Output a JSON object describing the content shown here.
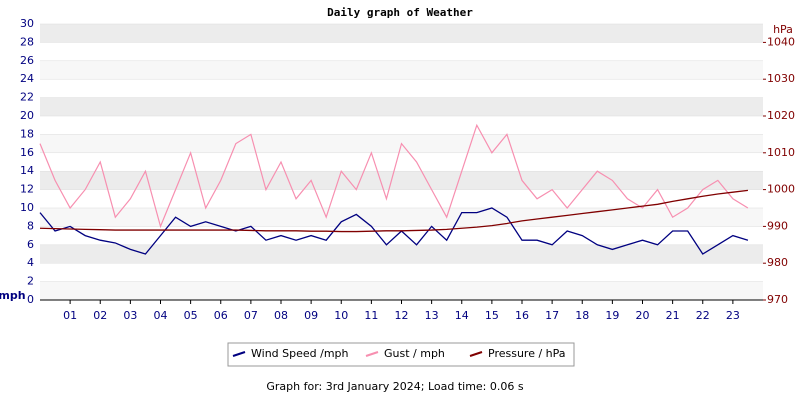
{
  "chart_data": {
    "type": "line",
    "title": "Daily graph of Weather",
    "y_label": "mph",
    "y2_label": "hPa",
    "footer": "Graph for: 3rd January 2024; Load time: 0.06 s",
    "x": [
      0,
      0.5,
      1,
      1.5,
      2,
      2.5,
      3,
      3.5,
      4,
      4.5,
      5,
      5.5,
      6,
      6.5,
      7,
      7.5,
      8,
      8.5,
      9,
      9.5,
      10,
      10.5,
      11,
      11.5,
      12,
      12.5,
      13,
      13.5,
      14,
      14.5,
      15,
      15.5,
      16,
      16.5,
      17,
      17.5,
      18,
      18.5,
      19,
      19.5,
      20,
      20.5,
      21,
      21.5,
      22,
      22.5,
      23,
      23.5
    ],
    "xlim": [
      0,
      24
    ],
    "xticks": [
      {
        "value": 1,
        "label": "01"
      },
      {
        "value": 2,
        "label": "02"
      },
      {
        "value": 3,
        "label": "03"
      },
      {
        "value": 4,
        "label": "04"
      },
      {
        "value": 5,
        "label": "05"
      },
      {
        "value": 6,
        "label": "06"
      },
      {
        "value": 7,
        "label": "07"
      },
      {
        "value": 8,
        "label": "08"
      },
      {
        "value": 9,
        "label": "09"
      },
      10,
      11,
      12,
      13,
      14,
      15,
      16,
      17,
      18,
      19,
      20,
      21,
      22,
      23
    ],
    "ylim": [
      0,
      30
    ],
    "yticks": [
      0,
      2,
      4,
      6,
      8,
      10,
      12,
      14,
      16,
      18,
      20,
      22,
      24,
      26,
      28,
      30
    ],
    "y2lim": [
      970,
      1045
    ],
    "y2ticks": [
      970,
      980,
      990,
      1000,
      1010,
      1020,
      1030,
      1040
    ],
    "series": [
      {
        "name": "Wind Speed /mph",
        "color": "#000080",
        "values": [
          9.5,
          7.5,
          8,
          7,
          6.5,
          6.2,
          5.5,
          5,
          7,
          9,
          8,
          8.5,
          8,
          7.5,
          8,
          6.5,
          7,
          6.5,
          7,
          6.5,
          8.5,
          9.3,
          8,
          6,
          7.5,
          6,
          8,
          6.5,
          9.5,
          9.5,
          10,
          9,
          6.5,
          6.5,
          6,
          7.5,
          7,
          6,
          5.5,
          6,
          6.5,
          6,
          7.5,
          7.5,
          5,
          6,
          7,
          6.5
        ]
      },
      {
        "name": "Gust / mph",
        "color": "#f78fb0",
        "values": [
          17,
          13,
          10,
          12,
          15,
          9,
          11,
          14,
          8,
          12,
          16,
          10,
          13,
          17,
          18,
          12,
          15,
          11,
          13,
          9,
          14,
          12,
          16,
          11,
          17,
          15,
          12,
          9,
          14,
          19,
          16,
          18,
          13,
          11,
          12,
          10,
          12,
          14,
          13,
          11,
          10,
          12,
          9,
          10,
          12,
          13,
          11,
          10
        ]
      },
      {
        "name": "Pressure / hPa",
        "color": "#800000",
        "axis": "y2",
        "values": [
          989.5,
          989.4,
          989.3,
          989.2,
          989.1,
          989,
          989,
          989,
          989,
          989,
          989,
          989,
          989,
          989,
          988.9,
          988.8,
          988.8,
          988.8,
          988.7,
          988.7,
          988.6,
          988.6,
          988.7,
          988.8,
          988.8,
          988.9,
          989,
          989.2,
          989.5,
          989.8,
          990.2,
          990.8,
          991.5,
          992,
          992.5,
          993,
          993.5,
          994,
          994.5,
          995,
          995.5,
          996,
          996.8,
          997.5,
          998.2,
          998.8,
          999.3,
          999.8
        ]
      }
    ]
  }
}
